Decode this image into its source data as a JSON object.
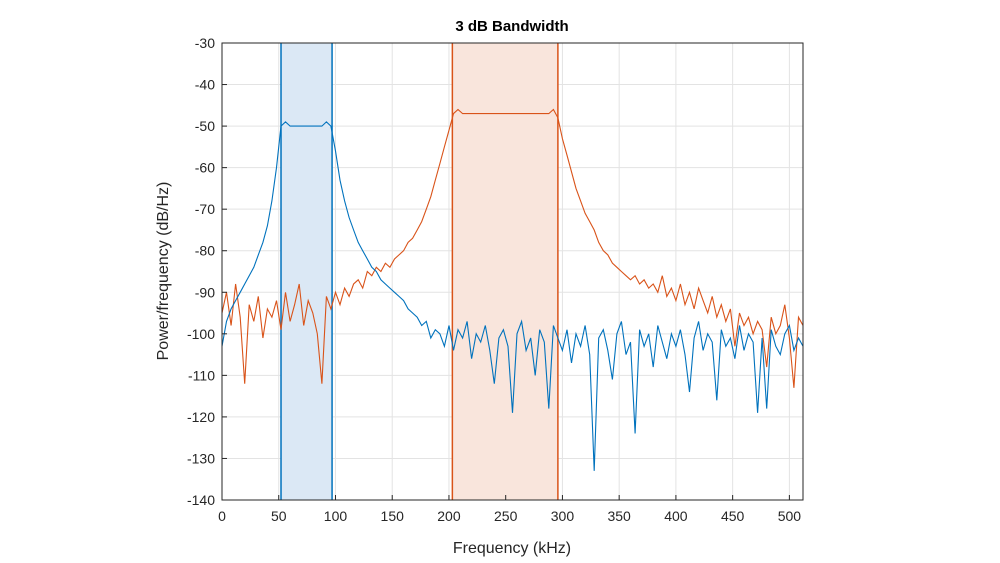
{
  "chart_data": {
    "type": "line",
    "title": "3 dB Bandwidth",
    "xlabel": "Frequency (kHz)",
    "ylabel": "Power/frequency (dB/Hz)",
    "xlim": [
      0,
      512
    ],
    "ylim": [
      -140,
      -30
    ],
    "xticks": [
      0,
      50,
      100,
      150,
      200,
      250,
      300,
      350,
      400,
      450,
      500
    ],
    "yticks": [
      -30,
      -40,
      -50,
      -60,
      -70,
      -80,
      -90,
      -100,
      -110,
      -120,
      -130,
      -140
    ],
    "grid": true,
    "x_start": 0,
    "x_step": 4,
    "series": [
      {
        "color": "#0072BD",
        "band": [
          52,
          97
        ],
        "band_fill": "#dbe8f5",
        "values": [
          -103,
          -97,
          -94,
          -92,
          -90,
          -88,
          -86,
          -84,
          -81,
          -78,
          -74,
          -68,
          -60,
          -50,
          -49,
          -50,
          -50,
          -50,
          -50,
          -50,
          -50,
          -50,
          -50,
          -49,
          -50,
          -56,
          -63,
          -68,
          -72,
          -75,
          -78,
          -80,
          -82,
          -84,
          -85,
          -87,
          -88,
          -89,
          -90,
          -91,
          -92,
          -94,
          -95,
          -96,
          -98,
          -97,
          -101,
          -99,
          -100,
          -103,
          -98,
          -104,
          -99,
          -101,
          -97,
          -106,
          -100,
          -102,
          -98,
          -104,
          -112,
          -101,
          -99,
          -103,
          -119,
          -100,
          -97,
          -104,
          -101,
          -110,
          -99,
          -102,
          -118,
          -98,
          -101,
          -104,
          -99,
          -107,
          -100,
          -103,
          -98,
          -105,
          -133,
          -101,
          -99,
          -104,
          -111,
          -100,
          -97,
          -105,
          -102,
          -124,
          -99,
          -103,
          -100,
          -108,
          -98,
          -102,
          -106,
          -100,
          -103,
          -99,
          -105,
          -114,
          -101,
          -97,
          -104,
          -100,
          -102,
          -116,
          -99,
          -103,
          -101,
          -106,
          -98,
          -104,
          -100,
          -102,
          -119,
          -101,
          -118,
          -99,
          -103,
          -105,
          -100,
          -98,
          -104,
          -101,
          -103
        ]
      },
      {
        "color": "#D95319",
        "band": [
          203,
          296
        ],
        "band_fill": "#f9e5dc",
        "values": [
          -95,
          -90,
          -98,
          -88,
          -96,
          -112,
          -93,
          -97,
          -91,
          -101,
          -94,
          -96,
          -92,
          -99,
          -90,
          -97,
          -93,
          -88,
          -98,
          -92,
          -95,
          -100,
          -112,
          -91,
          -94,
          -90,
          -93,
          -89,
          -91,
          -88,
          -87,
          -89,
          -85,
          -86,
          -84,
          -85,
          -83,
          -84,
          -82,
          -81,
          -80,
          -78,
          -77,
          -75,
          -73,
          -70,
          -67,
          -63,
          -59,
          -55,
          -51,
          -47,
          -46,
          -47,
          -47,
          -47,
          -47,
          -47,
          -47,
          -47,
          -47,
          -47,
          -47,
          -47,
          -47,
          -47,
          -47,
          -47,
          -47,
          -47,
          -47,
          -47,
          -47,
          -46,
          -48,
          -53,
          -57,
          -61,
          -65,
          -68,
          -71,
          -73,
          -75,
          -78,
          -80,
          -81,
          -83,
          -84,
          -85,
          -86,
          -87,
          -86,
          -88,
          -87,
          -89,
          -88,
          -90,
          -86,
          -91,
          -89,
          -92,
          -88,
          -93,
          -90,
          -94,
          -89,
          -92,
          -95,
          -91,
          -96,
          -93,
          -97,
          -94,
          -103,
          -95,
          -98,
          -96,
          -100,
          -97,
          -99,
          -108,
          -96,
          -100,
          -98,
          -93,
          -101,
          -113,
          -96,
          -98
        ]
      }
    ]
  }
}
